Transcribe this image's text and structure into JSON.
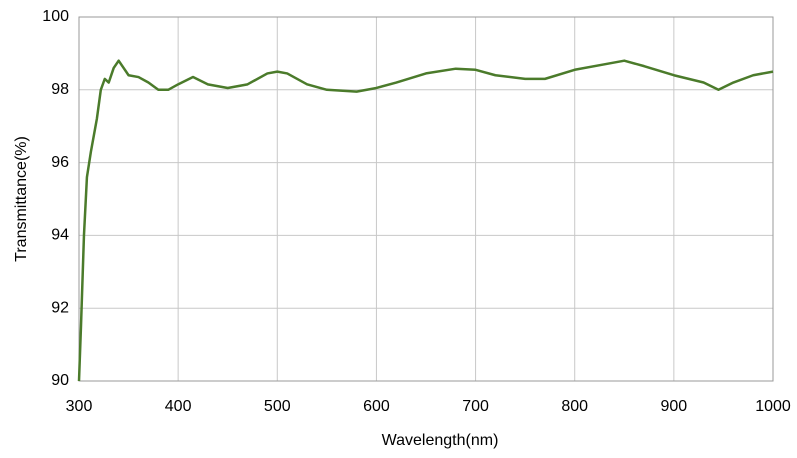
{
  "chart_data": {
    "type": "line",
    "x_label": "Wavelength(nm)",
    "y_label": "Transmittance(%)",
    "x": [
      300,
      302,
      305,
      308,
      312,
      318,
      322,
      326,
      330,
      335,
      340,
      345,
      350,
      360,
      370,
      380,
      390,
      400,
      415,
      430,
      450,
      470,
      490,
      500,
      510,
      530,
      550,
      580,
      600,
      620,
      650,
      680,
      700,
      720,
      750,
      770,
      800,
      830,
      850,
      870,
      900,
      930,
      945,
      960,
      980,
      1000
    ],
    "series": [
      {
        "color": "#4b7b2b",
        "values": [
          90,
          91.5,
          94,
          95.6,
          96.3,
          97.2,
          98.0,
          98.3,
          98.2,
          98.6,
          98.8,
          98.6,
          98.4,
          98.35,
          98.2,
          98.0,
          98.0,
          98.15,
          98.35,
          98.15,
          98.05,
          98.15,
          98.45,
          98.5,
          98.45,
          98.15,
          98.0,
          97.95,
          98.05,
          98.2,
          98.45,
          98.58,
          98.55,
          98.4,
          98.3,
          98.3,
          98.55,
          98.7,
          98.8,
          98.65,
          98.4,
          98.2,
          98.0,
          98.2,
          98.4,
          98.5
        ]
      }
    ],
    "xlim": [
      300,
      1000
    ],
    "xticks": [
      300,
      400,
      500,
      600,
      700,
      800,
      900,
      1000
    ],
    "ylim": [
      90,
      100
    ],
    "yticks": [
      90,
      92,
      94,
      96,
      98,
      100
    ],
    "grid": true
  }
}
